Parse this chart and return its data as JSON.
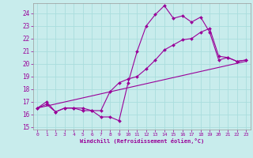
{
  "xlabel": "Windchill (Refroidissement éolien,°C)",
  "bg_color": "#c8ecec",
  "line_color": "#990099",
  "grid_color": "#aadddd",
  "xlim": [
    -0.5,
    23.5
  ],
  "ylim": [
    14.8,
    24.8
  ],
  "yticks": [
    15,
    16,
    17,
    18,
    19,
    20,
    21,
    22,
    23,
    24
  ],
  "xticks": [
    0,
    1,
    2,
    3,
    4,
    5,
    6,
    7,
    8,
    9,
    10,
    11,
    12,
    13,
    14,
    15,
    16,
    17,
    18,
    19,
    20,
    21,
    22,
    23
  ],
  "line1_x": [
    0,
    1,
    2,
    3,
    4,
    5,
    6,
    7,
    8,
    9,
    10,
    11,
    12,
    13,
    14,
    15,
    16,
    17,
    18,
    19,
    20,
    21,
    22,
    23
  ],
  "line1_y": [
    16.5,
    17.0,
    16.2,
    16.5,
    16.5,
    16.3,
    16.3,
    15.8,
    15.8,
    15.5,
    18.5,
    21.0,
    23.0,
    23.9,
    24.6,
    23.6,
    23.8,
    23.3,
    23.7,
    22.5,
    20.3,
    20.5,
    20.2,
    20.3
  ],
  "line2_x": [
    0,
    1,
    2,
    3,
    4,
    5,
    6,
    7,
    8,
    9,
    10,
    11,
    12,
    13,
    14,
    15,
    16,
    17,
    18,
    19,
    20,
    21,
    22,
    23
  ],
  "line2_y": [
    16.5,
    16.8,
    16.2,
    16.5,
    16.5,
    16.5,
    16.3,
    16.3,
    17.8,
    18.5,
    18.8,
    19.0,
    19.6,
    20.3,
    21.1,
    21.5,
    21.9,
    22.0,
    22.5,
    22.8,
    20.6,
    20.5,
    20.2,
    20.3
  ],
  "line3_x": [
    0,
    23
  ],
  "line3_y": [
    16.5,
    20.2
  ]
}
